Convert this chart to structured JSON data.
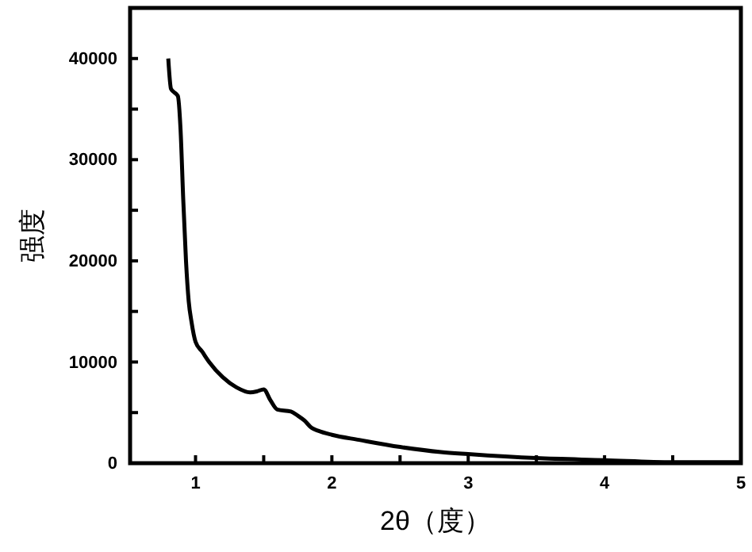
{
  "chart_data": {
    "type": "line",
    "xlabel": "2θ（度）",
    "ylabel": "强度",
    "x": [
      0.8,
      0.82,
      0.84,
      0.87,
      0.89,
      0.91,
      0.93,
      0.95,
      0.97,
      1.0,
      1.05,
      1.1,
      1.2,
      1.3,
      1.4,
      1.45,
      1.5,
      1.55,
      1.6,
      1.7,
      1.75,
      1.8,
      1.85,
      1.9,
      2.0,
      2.2,
      2.5,
      2.8,
      3.0,
      3.5,
      4.0,
      4.5,
      5.0
    ],
    "series": [
      {
        "color": "#000000",
        "values": [
          40000,
          37000,
          36700,
          36300,
          33000,
          26000,
          20000,
          16000,
          14000,
          12000,
          11000,
          10000,
          8500,
          7500,
          7000,
          7100,
          7300,
          6200,
          5300,
          5100,
          4700,
          4200,
          3500,
          3200,
          2800,
          2300,
          1600,
          1100,
          900,
          500,
          300,
          100,
          100
        ]
      }
    ],
    "xlim": [
      0.52,
      5
    ],
    "ylim": [
      0,
      45000
    ],
    "xticks": [
      1,
      {
        "value": 1.5,
        "label": null
      },
      2,
      {
        "value": 2.5,
        "label": null
      },
      3,
      {
        "value": 3.5,
        "label": null
      },
      4,
      {
        "value": 4.5,
        "label": null
      },
      5
    ],
    "yticks": [
      0,
      {
        "value": 5000,
        "label": null
      },
      10000,
      {
        "value": 15000,
        "label": null
      },
      20000,
      {
        "value": 25000,
        "label": null
      },
      30000,
      {
        "value": 35000,
        "label": null
      },
      40000
    ],
    "grid": false,
    "marker": "none",
    "line_style": "solid"
  }
}
